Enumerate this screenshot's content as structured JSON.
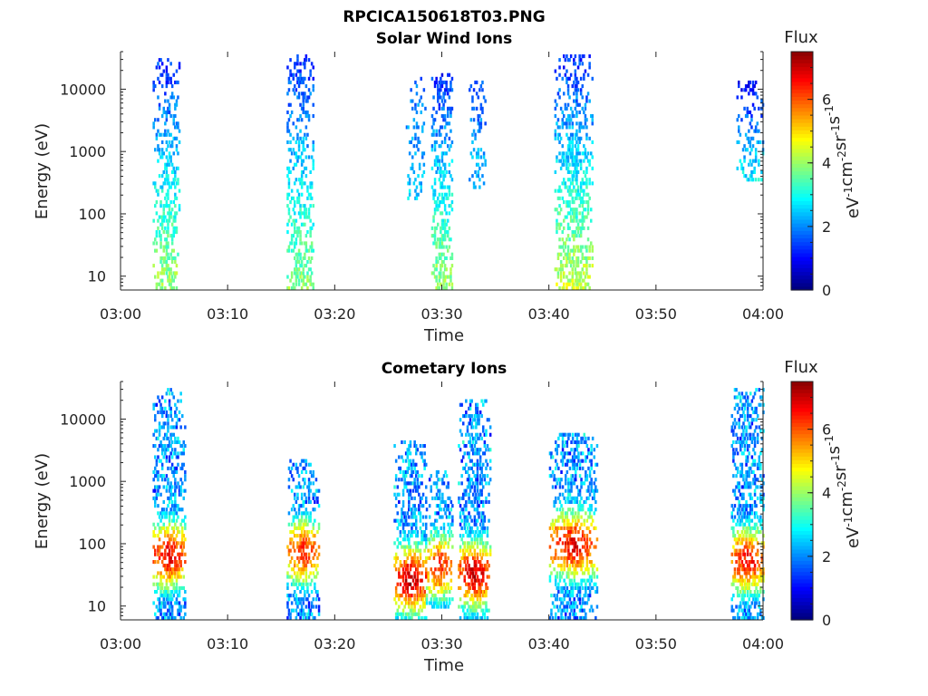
{
  "title": "RPCICA150618T03.PNG",
  "colors": {
    "colormap": "jet",
    "axis": "#222222",
    "background": "#ffffff"
  },
  "chart_data": [
    {
      "type": "heatmap",
      "title": "Solar Wind Ions",
      "xlabel": "Time",
      "ylabel": "Energy (eV)",
      "y_scale": "log",
      "xlim": [
        "03:00",
        "04:00"
      ],
      "ylim": [
        6,
        40000
      ],
      "x_ticks": [
        "03:00",
        "03:10",
        "03:20",
        "03:30",
        "03:40",
        "03:50",
        "04:00"
      ],
      "y_ticks": [
        "10",
        "100",
        "1000",
        "10000"
      ],
      "colorbar": {
        "label": "Flux",
        "unit": "eV-1cm-2sr-1s-1",
        "range": [
          0,
          7.5
        ],
        "ticks": [
          "0",
          "2",
          "4",
          "6"
        ]
      },
      "bursts": [
        {
          "start": "03:03:00",
          "end": "03:05:30",
          "e_min": 6,
          "e_max": 30000,
          "flux_low": 4.0,
          "flux_high": 1.2,
          "density": 0.55
        },
        {
          "start": "03:15:30",
          "end": "03:18:00",
          "e_min": 6,
          "e_max": 35000,
          "flux_low": 3.8,
          "flux_high": 1.2,
          "density": 0.55
        },
        {
          "start": "03:26:30",
          "end": "03:28:30",
          "e_min": 150,
          "e_max": 15000,
          "flux_low": 2.5,
          "flux_high": 1.6,
          "density": 0.3
        },
        {
          "start": "03:29:00",
          "end": "03:31:00",
          "e_min": 6,
          "e_max": 16000,
          "flux_low": 4.0,
          "flux_high": 1.2,
          "density": 0.6
        },
        {
          "start": "03:32:30",
          "end": "03:34:00",
          "e_min": 250,
          "e_max": 12000,
          "flux_low": 2.4,
          "flux_high": 1.4,
          "density": 0.35
        },
        {
          "start": "03:40:30",
          "end": "03:44:00",
          "e_min": 6,
          "e_max": 32000,
          "flux_low": 4.3,
          "flux_high": 1.2,
          "density": 0.6
        },
        {
          "start": "03:57:30",
          "end": "04:00:00",
          "e_min": 300,
          "e_max": 12000,
          "flux_low": 2.8,
          "flux_high": 1.0,
          "density": 0.45
        }
      ]
    },
    {
      "type": "heatmap",
      "title": "Cometary Ions",
      "xlabel": "Time",
      "ylabel": "Energy (eV)",
      "y_scale": "log",
      "xlim": [
        "03:00",
        "04:00"
      ],
      "ylim": [
        6,
        40000
      ],
      "x_ticks": [
        "03:00",
        "03:10",
        "03:20",
        "03:30",
        "03:40",
        "03:50",
        "04:00"
      ],
      "y_ticks": [
        "10",
        "100",
        "1000",
        "10000"
      ],
      "colorbar": {
        "label": "Flux",
        "unit": "eV-1cm-2sr-1s-1",
        "range": [
          0,
          7.5
        ],
        "ticks": [
          "0",
          "2",
          "4",
          "6"
        ]
      },
      "bursts": [
        {
          "start": "03:03:00",
          "end": "03:06:00",
          "e_min": 6,
          "e_max": 30000,
          "flux_peak": 6.8,
          "peak_energy": 60,
          "density": 0.7
        },
        {
          "start": "03:15:30",
          "end": "03:18:30",
          "e_min": 6,
          "e_max": 2000,
          "flux_peak": 6.3,
          "peak_energy": 70,
          "density": 0.65
        },
        {
          "start": "03:25:30",
          "end": "03:28:30",
          "e_min": 6,
          "e_max": 4000,
          "flux_peak": 7.2,
          "peak_energy": 25,
          "density": 0.7
        },
        {
          "start": "03:28:30",
          "end": "03:31:00",
          "e_min": 8,
          "e_max": 1500,
          "flux_peak": 6.4,
          "peak_energy": 40,
          "density": 0.65
        },
        {
          "start": "03:31:30",
          "end": "03:34:30",
          "e_min": 6,
          "e_max": 20000,
          "flux_peak": 7.0,
          "peak_energy": 30,
          "density": 0.7
        },
        {
          "start": "03:40:00",
          "end": "03:44:30",
          "e_min": 6,
          "e_max": 6000,
          "flux_peak": 6.8,
          "peak_energy": 90,
          "density": 0.7
        },
        {
          "start": "03:57:00",
          "end": "04:00:00",
          "e_min": 6,
          "e_max": 30000,
          "flux_peak": 6.6,
          "peak_energy": 50,
          "density": 0.75
        }
      ]
    }
  ]
}
